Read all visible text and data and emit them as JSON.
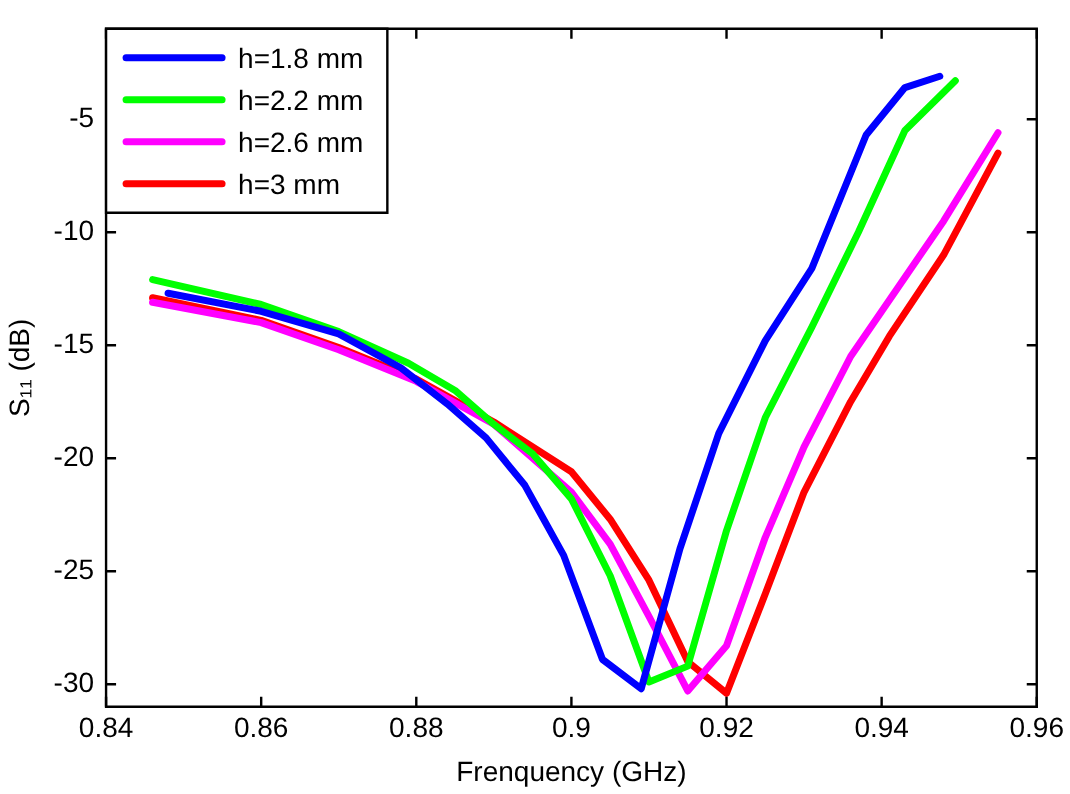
{
  "chart_data": {
    "type": "line",
    "xlabel": "Frenquency (GHz)",
    "ylabel": "S₁₁ (dB)",
    "xlim": [
      0.84,
      0.96
    ],
    "xticks": [
      0.84,
      0.86,
      0.88,
      0.9,
      0.92,
      0.94,
      0.96
    ],
    "ylim": [
      -31,
      -1
    ],
    "yticks": [
      -30,
      -25,
      -20,
      -15,
      -10,
      -5
    ],
    "grid": false,
    "legend": "top left",
    "marker": "none",
    "line_style": "solid",
    "series": [
      {
        "name": "h=1.8 mm",
        "color": "#0000ff",
        "x": [
          0.848,
          0.86,
          0.87,
          0.878,
          0.884,
          0.889,
          0.894,
          0.899,
          0.904,
          0.909,
          0.914,
          0.919,
          0.925,
          0.931,
          0.938,
          0.943,
          0.9475
        ],
        "values": [
          -12.7,
          -13.5,
          -14.5,
          -16,
          -17.6,
          -19.1,
          -21.2,
          -24.3,
          -28.9,
          -30.2,
          -24,
          -18.9,
          -14.8,
          -11.6,
          -5.7,
          -3.6,
          -3.1
        ]
      },
      {
        "name": "h=2.2 mm",
        "color": "#00ff00",
        "x": [
          0.846,
          0.86,
          0.87,
          0.879,
          0.885,
          0.89,
          0.895,
          0.9,
          0.905,
          0.91,
          0.915,
          0.92,
          0.925,
          0.931,
          0.937,
          0.943,
          0.9495
        ],
        "values": [
          -12.1,
          -13.2,
          -14.4,
          -15.8,
          -17,
          -18.5,
          -19.8,
          -21.8,
          -25.2,
          -29.9,
          -29.2,
          -23.2,
          -18.2,
          -14.2,
          -10,
          -5.5,
          -3.3
        ]
      },
      {
        "name": "h=2.6 mm",
        "color": "#ff00ff",
        "x": [
          0.846,
          0.86,
          0.87,
          0.88,
          0.89,
          0.9,
          0.905,
          0.91,
          0.915,
          0.92,
          0.925,
          0.93,
          0.936,
          0.942,
          0.948,
          0.955
        ],
        "values": [
          -13.1,
          -14,
          -15.2,
          -16.6,
          -18.5,
          -21.5,
          -23.8,
          -27,
          -30.3,
          -28.3,
          -23.5,
          -19.5,
          -15.5,
          -12.5,
          -9.5,
          -5.6
        ]
      },
      {
        "name": "h=3 mm",
        "color": "#ff0000",
        "x": [
          0.846,
          0.86,
          0.87,
          0.88,
          0.89,
          0.9,
          0.905,
          0.91,
          0.915,
          0.92,
          0.925,
          0.93,
          0.936,
          0.941,
          0.948,
          0.955
        ],
        "values": [
          -12.9,
          -13.9,
          -15.1,
          -16.5,
          -18.4,
          -20.6,
          -22.7,
          -25.4,
          -29,
          -30.4,
          -26,
          -21.5,
          -17.5,
          -14.6,
          -11,
          -6.5
        ]
      }
    ]
  }
}
